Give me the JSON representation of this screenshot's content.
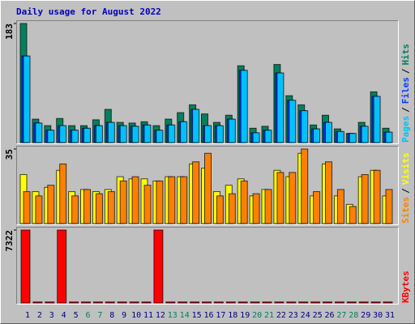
{
  "title": "Daily usage for August 2022",
  "chart_data": [
    {
      "type": "bar",
      "ylim": [
        0,
        183
      ],
      "yticks": [
        183
      ],
      "legend_separator": "/",
      "series": [
        {
          "name": "Hits",
          "color": "#00805c",
          "values": [
            183,
            36,
            26,
            37,
            26,
            26,
            35,
            51,
            31,
            30,
            32,
            26,
            36,
            46,
            58,
            44,
            31,
            42,
            118,
            22,
            25,
            120,
            72,
            58,
            27,
            42,
            21,
            14,
            31,
            78,
            22
          ]
        },
        {
          "name": "Files",
          "color": "#0040ff",
          "values": [
            133,
            30,
            19,
            26,
            19,
            22,
            26,
            31,
            26,
            25,
            27,
            19,
            27,
            32,
            51,
            26,
            26,
            36,
            111,
            15,
            19,
            107,
            65,
            49,
            21,
            31,
            17,
            14,
            25,
            71,
            16
          ]
        },
        {
          "name": "Pages",
          "color": "#00c0ff",
          "values": [
            133,
            30,
            19,
            26,
            19,
            22,
            26,
            31,
            26,
            25,
            27,
            19,
            27,
            32,
            51,
            26,
            26,
            36,
            111,
            15,
            19,
            107,
            65,
            49,
            21,
            31,
            17,
            14,
            25,
            71,
            16
          ]
        }
      ]
    },
    {
      "type": "bar",
      "ylim": [
        0,
        35
      ],
      "yticks": [
        35
      ],
      "legend_separator": "/",
      "series": [
        {
          "name": "Visits",
          "color": "#ffff00",
          "values": [
            23,
            15,
            17,
            25,
            15,
            16,
            15,
            16,
            22,
            21,
            21,
            20,
            22,
            22,
            28,
            26,
            15,
            18,
            21,
            13,
            16,
            25,
            22,
            33,
            13,
            28,
            13,
            9,
            22,
            25,
            13
          ]
        },
        {
          "name": "Sites",
          "color": "#ff8000",
          "values": [
            15,
            13,
            18,
            28,
            13,
            16,
            14,
            15,
            20,
            22,
            18,
            20,
            22,
            22,
            29,
            33,
            13,
            14,
            20,
            14,
            16,
            24,
            24,
            35,
            15,
            29,
            16,
            8,
            23,
            25,
            16
          ]
        }
      ]
    },
    {
      "type": "bar",
      "ylim": [
        0,
        7322
      ],
      "yticks": [
        7322
      ],
      "categories": [
        "1",
        "2",
        "3",
        "4",
        "5",
        "6",
        "7",
        "8",
        "9",
        "10",
        "11",
        "12",
        "13",
        "14",
        "15",
        "16",
        "17",
        "18",
        "19",
        "20",
        "21",
        "22",
        "23",
        "24",
        "25",
        "26",
        "27",
        "28",
        "29",
        "30",
        "31"
      ],
      "category_colors": [
        "#000080",
        "#000080",
        "#000080",
        "#000080",
        "#000080",
        "#00805c",
        "#00805c",
        "#000080",
        "#000080",
        "#000080",
        "#000080",
        "#000080",
        "#00805c",
        "#00805c",
        "#000080",
        "#000080",
        "#000080",
        "#000080",
        "#000080",
        "#00805c",
        "#00805c",
        "#000080",
        "#000080",
        "#000080",
        "#000080",
        "#000080",
        "#00805c",
        "#00805c",
        "#000080",
        "#000080",
        "#000080"
      ],
      "series": [
        {
          "name": "KBytes",
          "color": "#ff0000",
          "values": [
            7322,
            100,
            100,
            7322,
            100,
            100,
            100,
            100,
            100,
            100,
            100,
            7322,
            100,
            100,
            100,
            100,
            100,
            100,
            100,
            100,
            100,
            100,
            100,
            100,
            100,
            100,
            100,
            100,
            100,
            100,
            100
          ]
        }
      ]
    }
  ]
}
